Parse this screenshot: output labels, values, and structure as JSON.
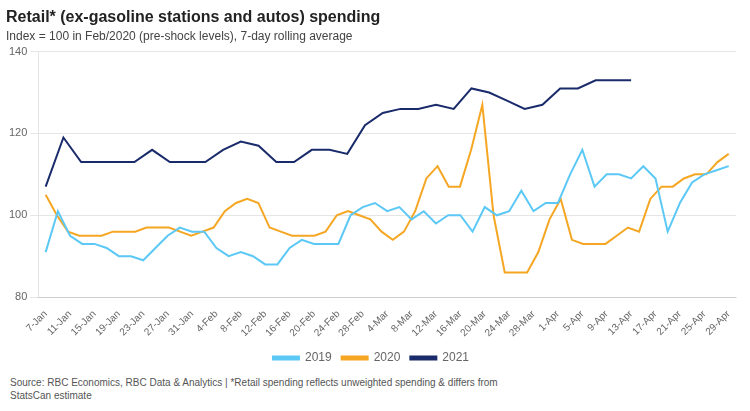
{
  "chart_data": {
    "type": "line",
    "title": "Retail* (ex-gasoline stations and autos) spending",
    "subtitle": "Index = 100 in Feb/2020 (pre-shock levels), 7-day rolling average",
    "source": "Source: RBC Economics, RBC Data & Analytics | *Retail spending reflects unweighted spending & differs from\nStatsCan estimate",
    "xlim": [
      -0.3,
      28.3
    ],
    "xticks": [
      {
        "value": 0,
        "label": "7-Jan"
      },
      {
        "value": 1,
        "label": "11-Jan"
      },
      {
        "value": 2,
        "label": "15-Jan"
      },
      {
        "value": 3,
        "label": "19-Jan"
      },
      {
        "value": 4,
        "label": "23-Jan"
      },
      {
        "value": 5,
        "label": "27-Jan"
      },
      {
        "value": 6,
        "label": "31-Jan"
      },
      {
        "value": 7,
        "label": "4-Feb"
      },
      {
        "value": 8,
        "label": "8-Feb"
      },
      {
        "value": 9,
        "label": "12-Feb"
      },
      {
        "value": 10,
        "label": "16-Feb"
      },
      {
        "value": 11,
        "label": "20-Feb"
      },
      {
        "value": 12,
        "label": "24-Feb"
      },
      {
        "value": 13,
        "label": "28-Feb"
      },
      {
        "value": 14,
        "label": "4-Mar"
      },
      {
        "value": 15,
        "label": "8-Mar"
      },
      {
        "value": 16,
        "label": "12-Mar"
      },
      {
        "value": 17,
        "label": "16-Mar"
      },
      {
        "value": 18,
        "label": "20-Mar"
      },
      {
        "value": 19,
        "label": "24-Mar"
      },
      {
        "value": 20,
        "label": "28-Mar"
      },
      {
        "value": 21,
        "label": "1-Apr"
      },
      {
        "value": 22,
        "label": "5-Apr"
      },
      {
        "value": 23,
        "label": "9-Apr"
      },
      {
        "value": 24,
        "label": "13-Apr"
      },
      {
        "value": 25,
        "label": "17-Apr"
      },
      {
        "value": 26,
        "label": "21-Apr"
      },
      {
        "value": 27,
        "label": "25-Apr"
      },
      {
        "value": 28,
        "label": "29-Apr"
      }
    ],
    "ylim": [
      80,
      140
    ],
    "yticks": [
      80,
      100,
      120,
      140
    ],
    "grid": "y",
    "legend": "bottom",
    "series": [
      {
        "name": "2019",
        "color": "#5BC8F5",
        "x": [
          0,
          0.5,
          1,
          1.5,
          2,
          2.5,
          3,
          3.5,
          4,
          4.5,
          5,
          5.5,
          6,
          6.5,
          7,
          7.5,
          8,
          8.5,
          9,
          9.5,
          10,
          10.5,
          11,
          11.5,
          12,
          12.5,
          13,
          13.5,
          14,
          14.5,
          15,
          15.5,
          16,
          16.5,
          17,
          17.5,
          18,
          18.5,
          19,
          19.5,
          20,
          20.5,
          21,
          21.5,
          22,
          22.5,
          23,
          23.5,
          24,
          24.5,
          25,
          25.5,
          26,
          26.5,
          27,
          27.5,
          28
        ],
        "values": [
          91,
          101,
          95,
          93,
          93,
          92,
          90,
          90,
          89,
          92,
          95,
          97,
          96,
          96,
          92,
          90,
          91,
          90,
          88,
          88,
          92,
          94,
          93,
          93,
          93,
          100,
          102,
          103,
          101,
          102,
          99,
          101,
          98,
          100,
          100,
          96,
          102,
          100,
          101,
          106,
          101,
          103,
          103,
          110,
          116,
          107,
          110,
          110,
          109,
          112,
          109,
          96,
          103,
          108,
          110,
          111,
          112
        ]
      },
      {
        "name": "2020",
        "color": "#F5A623",
        "x": [
          0,
          0.459016,
          0.918033,
          1.377049,
          1.836066,
          2.295082,
          2.754098,
          3.213115,
          3.672131,
          4.131148,
          4.590164,
          5.04918,
          5.508197,
          5.967213,
          6.42623,
          6.885246,
          7.344262,
          7.803279,
          8.262295,
          8.721311,
          9.180328,
          9.639344,
          10.098361,
          10.557377,
          11.016393,
          11.47541,
          11.934426,
          12.393443,
          12.852459,
          13.311475,
          13.770492,
          14.229508,
          14.688525,
          15.147541,
          15.606557,
          16.065574,
          16.52459,
          16.983607,
          17.442623,
          17.901639,
          18.360656,
          18.819672,
          19.278689,
          19.737705,
          20.196721,
          20.655738,
          21.114754,
          21.57377,
          22.032787,
          22.491803,
          22.95082,
          23.409836,
          23.868852,
          24.327869,
          24.786885,
          25.245902,
          25.704918,
          26.163934,
          26.622951,
          27.081967,
          27.540984,
          28
        ],
        "values": [
          105,
          100,
          96,
          95,
          95,
          95,
          96,
          96,
          96,
          97,
          97,
          97,
          96,
          95,
          96,
          97,
          101,
          103,
          104,
          103,
          97,
          96,
          95,
          95,
          95,
          96,
          100,
          101,
          100,
          99,
          96,
          94,
          96,
          101,
          109,
          112,
          107,
          107,
          116,
          127,
          100,
          86,
          86,
          86,
          91,
          99,
          104,
          94,
          93,
          93,
          93,
          95,
          97,
          96,
          104,
          107,
          107,
          109,
          110,
          110,
          113,
          115
        ]
      },
      {
        "name": "2021",
        "color": "#1A2B6B",
        "x": [
          0,
          0.727273,
          1.454545,
          2.181818,
          2.909091,
          3.636364,
          4.363636,
          5.090909,
          5.818182,
          6.545455,
          7.272727,
          8,
          8.727273,
          9.454545,
          10.181818,
          10.909091,
          11.636364,
          12.363636,
          13.090909,
          13.818182,
          14.545455,
          15.272727,
          16,
          16.727273,
          17.454545,
          18.181818,
          18.909091,
          19.636364,
          20.363636,
          21.090909,
          21.818182,
          22.545455,
          23.272727,
          24
        ],
        "values": [
          107,
          119,
          113,
          113,
          113,
          113,
          116,
          113,
          113,
          113,
          116,
          118,
          117,
          113,
          113,
          116,
          116,
          115,
          122,
          125,
          126,
          126,
          127,
          126,
          131,
          130,
          128,
          126,
          127,
          131,
          131,
          133,
          133,
          133
        ]
      }
    ]
  }
}
